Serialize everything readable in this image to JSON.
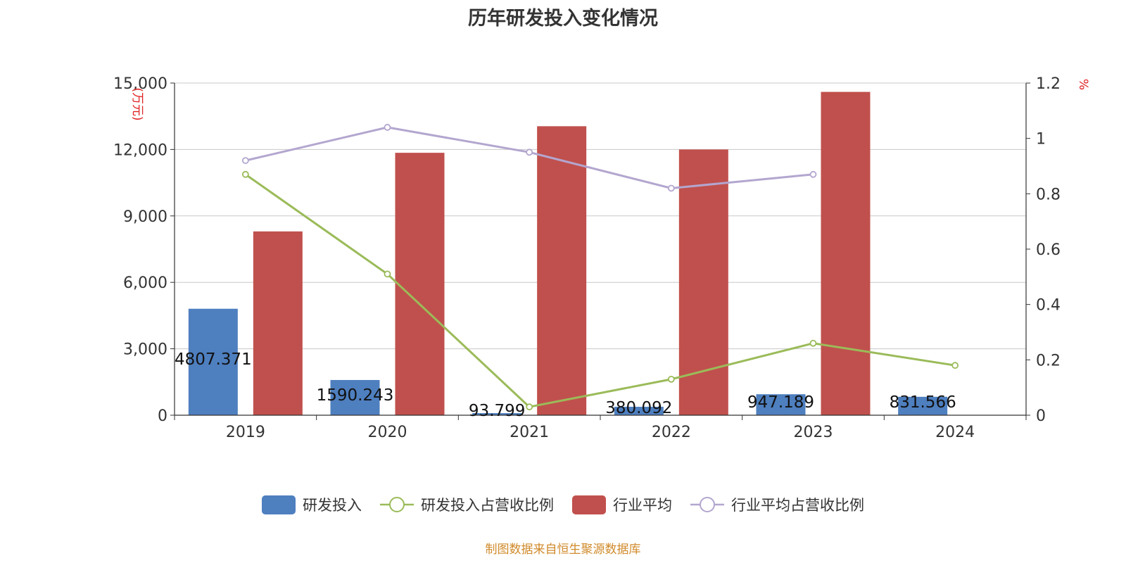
{
  "title": "历年研发投入变化情况",
  "source": "制图数据来自恒生聚源数据库",
  "colors": {
    "rd": "#4e7fbf",
    "rd_ratio": "#9bbb59",
    "ind": "#c0504d",
    "ind_ratio": "#b3a6cf",
    "grid": "#c8c8c8",
    "axis": "#333333",
    "unit": "#e02020"
  },
  "chart_data": {
    "type": "bar",
    "categories": [
      "2019",
      "2020",
      "2021",
      "2022",
      "2023",
      "2024"
    ],
    "left_axis": {
      "unit": "(万元)",
      "ylim": [
        0,
        15000
      ],
      "ticks": [
        0,
        3000,
        6000,
        9000,
        12000,
        15000
      ],
      "tick_labels": [
        "0",
        "3,000",
        "6,000",
        "9,000",
        "12,000",
        "15,000"
      ]
    },
    "right_axis": {
      "unit": "%",
      "ylim": [
        0,
        1.2
      ],
      "ticks": [
        0,
        0.2,
        0.4,
        0.6,
        0.8,
        1,
        1.2
      ],
      "tick_labels": [
        "0",
        "0.2",
        "0.4",
        "0.6",
        "0.8",
        "1",
        "1.2"
      ]
    },
    "series": [
      {
        "name": "研发投入",
        "type": "bar",
        "axis": "left",
        "values": [
          4807.371,
          1590.243,
          93.799,
          380.092,
          947.189,
          831.566
        ],
        "labels": [
          "4807.371",
          "1590.243",
          "93.799",
          "380.092",
          "947.189",
          "831.566"
        ]
      },
      {
        "name": "研发投入占营收比例",
        "type": "line",
        "axis": "right",
        "values": [
          0.87,
          0.51,
          0.03,
          0.13,
          0.26,
          0.18
        ]
      },
      {
        "name": "行业平均",
        "type": "bar",
        "axis": "left",
        "values": [
          8300,
          11850,
          13050,
          12000,
          14600,
          null
        ]
      },
      {
        "name": "行业平均占营收比例",
        "type": "line",
        "axis": "right",
        "values": [
          0.92,
          1.04,
          0.95,
          0.82,
          0.87,
          null
        ]
      }
    ],
    "grid": true,
    "legend_position": "bottom"
  }
}
